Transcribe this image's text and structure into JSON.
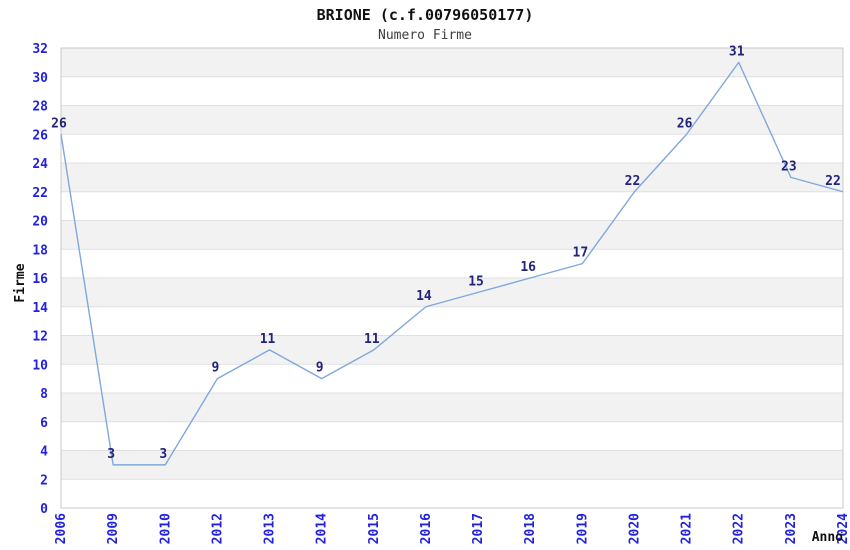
{
  "chart_data": {
    "type": "line",
    "title": "BRIONE (c.f.00796050177)",
    "subtitle": "Numero Firme",
    "xlabel": "Anno",
    "ylabel": "Firme",
    "categories": [
      "2006",
      "2009",
      "2010",
      "2012",
      "2013",
      "2014",
      "2015",
      "2016",
      "2017",
      "2018",
      "2019",
      "2020",
      "2021",
      "2022",
      "2023",
      "2024"
    ],
    "values": [
      26,
      3,
      3,
      9,
      11,
      9,
      11,
      14,
      15,
      16,
      17,
      22,
      26,
      31,
      23,
      22
    ],
    "ylim": [
      0,
      32
    ],
    "yticks": [
      0,
      2,
      4,
      6,
      8,
      10,
      12,
      14,
      16,
      18,
      20,
      22,
      24,
      26,
      28,
      30,
      32
    ],
    "grid": true,
    "legend": "none",
    "band_step": 2,
    "colors": {
      "line": "#7fa8dc",
      "tick_label": "#2222dd",
      "data_label": "#232377",
      "band": "#f2f2f2",
      "gridline": "#e0e0e0",
      "border": "#c9c9c9",
      "title": "#111111",
      "subtitle": "#3d3d3d"
    }
  }
}
